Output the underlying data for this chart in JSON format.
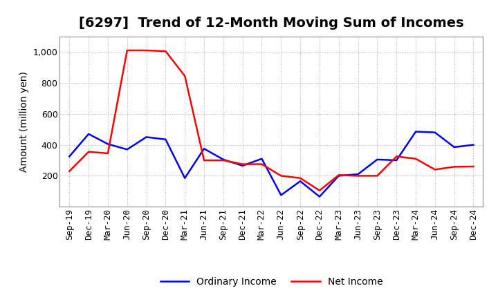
{
  "title": "[6297]  Trend of 12-Month Moving Sum of Incomes",
  "ylabel": "Amount (million yen)",
  "x_labels": [
    "Sep-19",
    "Dec-19",
    "Mar-20",
    "Jun-20",
    "Sep-20",
    "Dec-20",
    "Mar-21",
    "Jun-21",
    "Sep-21",
    "Dec-21",
    "Mar-22",
    "Jun-22",
    "Sep-22",
    "Dec-22",
    "Mar-23",
    "Jun-23",
    "Sep-23",
    "Dec-23",
    "Mar-24",
    "Jun-24",
    "Sep-24",
    "Dec-24"
  ],
  "ordinary_income": [
    325,
    470,
    405,
    370,
    450,
    435,
    185,
    375,
    305,
    265,
    310,
    75,
    165,
    65,
    200,
    210,
    305,
    300,
    485,
    480,
    385,
    400
  ],
  "net_income": [
    230,
    355,
    345,
    1010,
    1010,
    1005,
    845,
    300,
    300,
    275,
    275,
    200,
    185,
    105,
    205,
    200,
    200,
    325,
    310,
    240,
    258,
    260
  ],
  "ordinary_color": "#0000ff",
  "net_color": "#ff0000",
  "ylim_min": 0,
  "ylim_max": 1100,
  "yticks": [
    200,
    400,
    600,
    800,
    1000
  ],
  "ytick_labels": [
    "200",
    "400",
    "600",
    "800",
    "1,000"
  ],
  "title_fontsize": 14,
  "axis_label_fontsize": 10,
  "tick_fontsize": 9,
  "legend_labels": [
    "Ordinary Income",
    "Net Income"
  ],
  "background_color": "#ffffff",
  "grid_color": "#aaaaaa",
  "line_width": 1.8
}
